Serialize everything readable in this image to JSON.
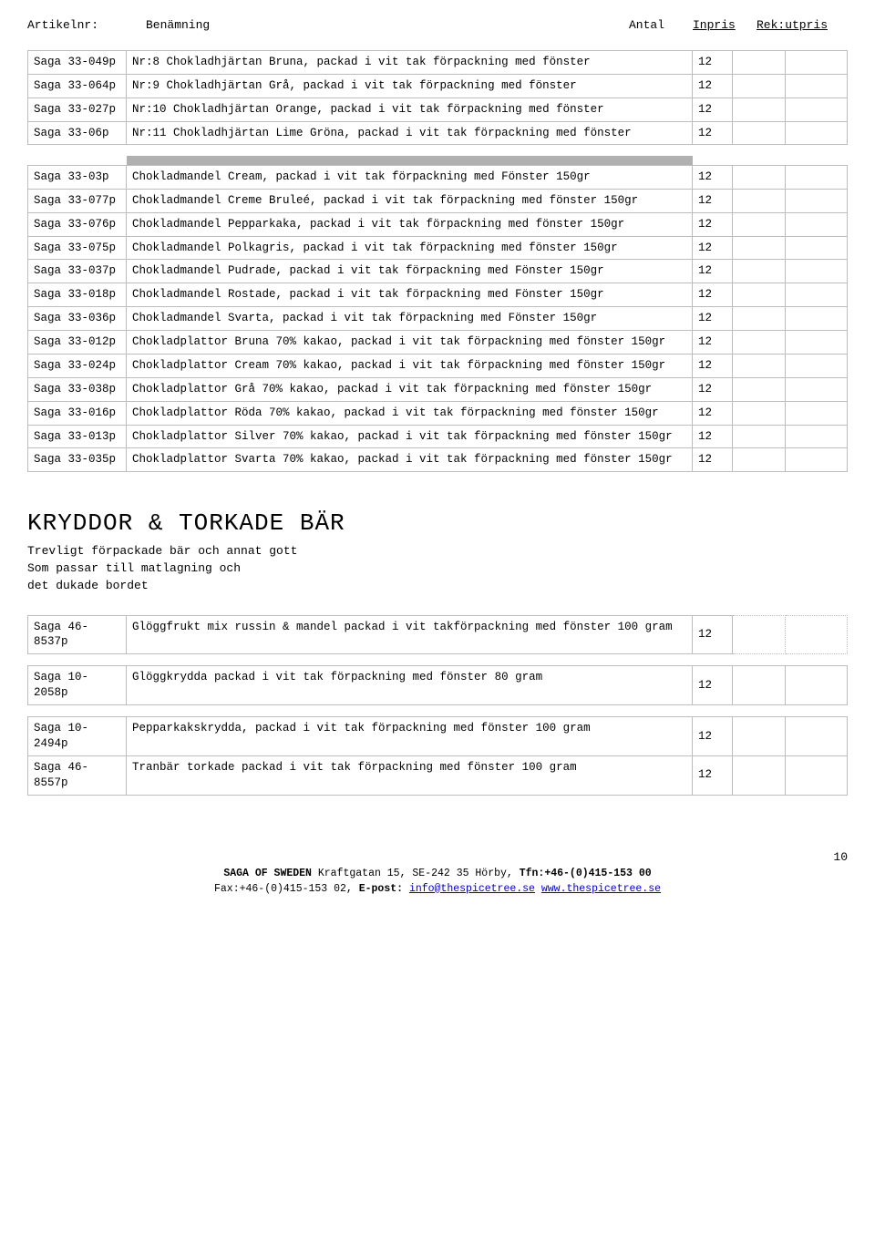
{
  "header": {
    "artikelnr": "Artikelnr:",
    "benamning": "Benämning",
    "antal": "Antal",
    "inpris": "Inpris",
    "rekutpris": "Rek:utpris"
  },
  "table1": [
    {
      "art": "Saga 33-049p",
      "ben": "Nr:8 Chokladhjärtan Bruna, packad i vit tak förpackning med fönster",
      "antal": "12"
    },
    {
      "art": "Saga 33-064p",
      "ben": "Nr:9 Chokladhjärtan Grå, packad i vit tak förpackning med fönster",
      "antal": "12"
    },
    {
      "art": "Saga 33-027p",
      "ben": "Nr:10 Chokladhjärtan Orange, packad i vit tak förpackning med fönster",
      "antal": "12"
    },
    {
      "art": "Saga 33-06p",
      "ben": "Nr:11 Chokladhjärtan Lime Gröna, packad i vit tak förpackning med fönster",
      "antal": "12"
    }
  ],
  "table2": [
    {
      "art": "Saga 33-03p",
      "ben": "Chokladmandel Cream, packad i vit tak förpackning med Fönster 150gr",
      "antal": "12"
    },
    {
      "art": "Saga 33-077p",
      "ben": "Chokladmandel Creme Bruleé, packad i vit tak förpackning med fönster 150gr",
      "antal": "12"
    },
    {
      "art": "Saga 33-076p",
      "ben": "Chokladmandel Pepparkaka, packad i vit tak förpackning med fönster 150gr",
      "antal": "12"
    },
    {
      "art": "Saga 33-075p",
      "ben": "Chokladmandel Polkagris, packad i vit tak förpackning med fönster 150gr",
      "antal": "12"
    },
    {
      "art": "Saga 33-037p",
      "ben": "Chokladmandel Pudrade, packad i vit tak förpackning med Fönster 150gr",
      "antal": "12"
    },
    {
      "art": "Saga 33-018p",
      "ben": "Chokladmandel Rostade, packad i vit tak förpackning med Fönster 150gr",
      "antal": "12"
    },
    {
      "art": "Saga 33-036p",
      "ben": "Chokladmandel Svarta, packad i vit tak förpackning med Fönster 150gr",
      "antal": "12"
    },
    {
      "art": "Saga 33-012p",
      "ben": "Chokladplattor Bruna 70% kakao, packad i vit tak förpackning med fönster 150gr",
      "antal": "12"
    },
    {
      "art": "Saga 33-024p",
      "ben": "Chokladplattor Cream 70% kakao, packad i vit tak förpackning med fönster 150gr",
      "antal": "12"
    },
    {
      "art": "Saga 33-038p",
      "ben": "Chokladplattor Grå  70% kakao, packad i vit tak förpackning med fönster 150gr",
      "antal": "12"
    },
    {
      "art": "Saga 33-016p",
      "ben": "Chokladplattor Röda  70% kakao, packad i vit tak förpackning med fönster 150gr",
      "antal": "12"
    },
    {
      "art": "Saga 33-013p",
      "ben": "Chokladplattor Silver  70% kakao, packad i vit tak förpackning med fönster  150gr",
      "antal": "12"
    },
    {
      "art": "Saga 33-035p",
      "ben": "Chokladplattor Svarta  70% kakao, packad i vit tak förpackning med fönster  150gr",
      "antal": "12"
    }
  ],
  "section": {
    "title": "KRYDDOR & TORKADE BÄR",
    "sub1": "Trevligt förpackade bär och annat gott",
    "sub2": "Som passar till matlagning och",
    "sub3": "det dukade bordet"
  },
  "table3a": [
    {
      "art": "Saga 46-8537p",
      "ben": "Glöggfrukt mix russin & mandel packad i vit takförpackning  med fönster   100 gram",
      "antal": "12"
    }
  ],
  "table3b": [
    {
      "art": "Saga 10-2058p",
      "ben": "Glöggkrydda packad i vit tak förpackning med fönster  80 gram",
      "antal": "12"
    }
  ],
  "table3c": [
    {
      "art": "Saga 10-2494p",
      "ben": "Pepparkakskrydda, packad i vit tak förpackning med fönster 100 gram",
      "antal": "12"
    },
    {
      "art": "Saga 46-8557p",
      "ben": "Tranbär torkade packad i vit tak förpackning med fönster  100 gram",
      "antal": "12"
    }
  ],
  "pageNum": "10",
  "footer": {
    "line1a": "SAGA OF SWEDEN",
    "line1b": " Kraftgatan 15, SE-242 35 Hörby, ",
    "line1c": "Tfn:+46-(0)415-153 00",
    "line2a": "Fax:+46-(0)415-153 02,   ",
    "line2b": "E-post:",
    "email": "info@thespicetree.se",
    "spaces": "   ",
    "url": "www.thespicetree.se"
  }
}
